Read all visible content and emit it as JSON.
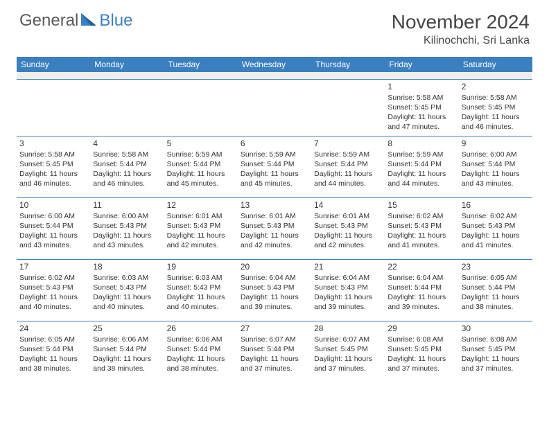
{
  "brand": {
    "part1": "General",
    "part2": "Blue"
  },
  "title": "November 2024",
  "location": "Kilinochchi, Sri Lanka",
  "style": {
    "header_bg": "#3a7fc0",
    "header_text": "#ffffff",
    "cell_border": "#3a7fc0",
    "spacer_bg": "#eeeeee",
    "text_color": "#333333",
    "title_fontsize": 28,
    "subtitle_fontsize": 16,
    "daynum_fontsize": 12,
    "cell_fontsize": 10.5,
    "columns": 7
  },
  "weekdays": [
    "Sunday",
    "Monday",
    "Tuesday",
    "Wednesday",
    "Thursday",
    "Friday",
    "Saturday"
  ],
  "weeks": [
    [
      null,
      null,
      null,
      null,
      null,
      {
        "day": "1",
        "sunrise": "Sunrise: 5:58 AM",
        "sunset": "Sunset: 5:45 PM",
        "daylight": "Daylight: 11 hours and 47 minutes."
      },
      {
        "day": "2",
        "sunrise": "Sunrise: 5:58 AM",
        "sunset": "Sunset: 5:45 PM",
        "daylight": "Daylight: 11 hours and 46 minutes."
      }
    ],
    [
      {
        "day": "3",
        "sunrise": "Sunrise: 5:58 AM",
        "sunset": "Sunset: 5:45 PM",
        "daylight": "Daylight: 11 hours and 46 minutes."
      },
      {
        "day": "4",
        "sunrise": "Sunrise: 5:58 AM",
        "sunset": "Sunset: 5:44 PM",
        "daylight": "Daylight: 11 hours and 46 minutes."
      },
      {
        "day": "5",
        "sunrise": "Sunrise: 5:59 AM",
        "sunset": "Sunset: 5:44 PM",
        "daylight": "Daylight: 11 hours and 45 minutes."
      },
      {
        "day": "6",
        "sunrise": "Sunrise: 5:59 AM",
        "sunset": "Sunset: 5:44 PM",
        "daylight": "Daylight: 11 hours and 45 minutes."
      },
      {
        "day": "7",
        "sunrise": "Sunrise: 5:59 AM",
        "sunset": "Sunset: 5:44 PM",
        "daylight": "Daylight: 11 hours and 44 minutes."
      },
      {
        "day": "8",
        "sunrise": "Sunrise: 5:59 AM",
        "sunset": "Sunset: 5:44 PM",
        "daylight": "Daylight: 11 hours and 44 minutes."
      },
      {
        "day": "9",
        "sunrise": "Sunrise: 6:00 AM",
        "sunset": "Sunset: 5:44 PM",
        "daylight": "Daylight: 11 hours and 43 minutes."
      }
    ],
    [
      {
        "day": "10",
        "sunrise": "Sunrise: 6:00 AM",
        "sunset": "Sunset: 5:44 PM",
        "daylight": "Daylight: 11 hours and 43 minutes."
      },
      {
        "day": "11",
        "sunrise": "Sunrise: 6:00 AM",
        "sunset": "Sunset: 5:43 PM",
        "daylight": "Daylight: 11 hours and 43 minutes."
      },
      {
        "day": "12",
        "sunrise": "Sunrise: 6:01 AM",
        "sunset": "Sunset: 5:43 PM",
        "daylight": "Daylight: 11 hours and 42 minutes."
      },
      {
        "day": "13",
        "sunrise": "Sunrise: 6:01 AM",
        "sunset": "Sunset: 5:43 PM",
        "daylight": "Daylight: 11 hours and 42 minutes."
      },
      {
        "day": "14",
        "sunrise": "Sunrise: 6:01 AM",
        "sunset": "Sunset: 5:43 PM",
        "daylight": "Daylight: 11 hours and 42 minutes."
      },
      {
        "day": "15",
        "sunrise": "Sunrise: 6:02 AM",
        "sunset": "Sunset: 5:43 PM",
        "daylight": "Daylight: 11 hours and 41 minutes."
      },
      {
        "day": "16",
        "sunrise": "Sunrise: 6:02 AM",
        "sunset": "Sunset: 5:43 PM",
        "daylight": "Daylight: 11 hours and 41 minutes."
      }
    ],
    [
      {
        "day": "17",
        "sunrise": "Sunrise: 6:02 AM",
        "sunset": "Sunset: 5:43 PM",
        "daylight": "Daylight: 11 hours and 40 minutes."
      },
      {
        "day": "18",
        "sunrise": "Sunrise: 6:03 AM",
        "sunset": "Sunset: 5:43 PM",
        "daylight": "Daylight: 11 hours and 40 minutes."
      },
      {
        "day": "19",
        "sunrise": "Sunrise: 6:03 AM",
        "sunset": "Sunset: 5:43 PM",
        "daylight": "Daylight: 11 hours and 40 minutes."
      },
      {
        "day": "20",
        "sunrise": "Sunrise: 6:04 AM",
        "sunset": "Sunset: 5:43 PM",
        "daylight": "Daylight: 11 hours and 39 minutes."
      },
      {
        "day": "21",
        "sunrise": "Sunrise: 6:04 AM",
        "sunset": "Sunset: 5:43 PM",
        "daylight": "Daylight: 11 hours and 39 minutes."
      },
      {
        "day": "22",
        "sunrise": "Sunrise: 6:04 AM",
        "sunset": "Sunset: 5:44 PM",
        "daylight": "Daylight: 11 hours and 39 minutes."
      },
      {
        "day": "23",
        "sunrise": "Sunrise: 6:05 AM",
        "sunset": "Sunset: 5:44 PM",
        "daylight": "Daylight: 11 hours and 38 minutes."
      }
    ],
    [
      {
        "day": "24",
        "sunrise": "Sunrise: 6:05 AM",
        "sunset": "Sunset: 5:44 PM",
        "daylight": "Daylight: 11 hours and 38 minutes."
      },
      {
        "day": "25",
        "sunrise": "Sunrise: 6:06 AM",
        "sunset": "Sunset: 5:44 PM",
        "daylight": "Daylight: 11 hours and 38 minutes."
      },
      {
        "day": "26",
        "sunrise": "Sunrise: 6:06 AM",
        "sunset": "Sunset: 5:44 PM",
        "daylight": "Daylight: 11 hours and 38 minutes."
      },
      {
        "day": "27",
        "sunrise": "Sunrise: 6:07 AM",
        "sunset": "Sunset: 5:44 PM",
        "daylight": "Daylight: 11 hours and 37 minutes."
      },
      {
        "day": "28",
        "sunrise": "Sunrise: 6:07 AM",
        "sunset": "Sunset: 5:45 PM",
        "daylight": "Daylight: 11 hours and 37 minutes."
      },
      {
        "day": "29",
        "sunrise": "Sunrise: 6:08 AM",
        "sunset": "Sunset: 5:45 PM",
        "daylight": "Daylight: 11 hours and 37 minutes."
      },
      {
        "day": "30",
        "sunrise": "Sunrise: 6:08 AM",
        "sunset": "Sunset: 5:45 PM",
        "daylight": "Daylight: 11 hours and 37 minutes."
      }
    ]
  ]
}
